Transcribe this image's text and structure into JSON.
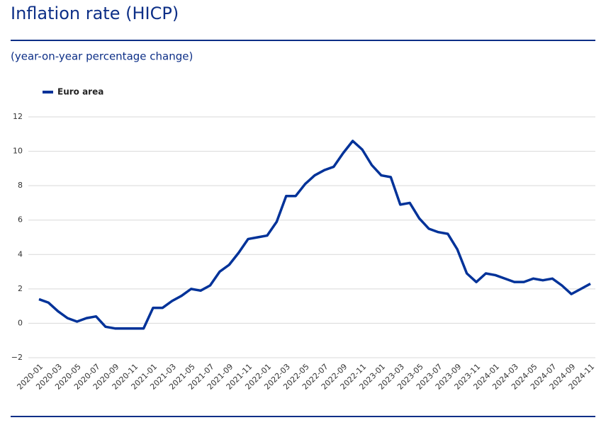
{
  "chart_data": {
    "type": "line",
    "title": "Inflation rate (HICP)",
    "subtitle": "(year-on-year percentage change)",
    "categories": [
      "2020-01",
      null,
      "2020-03",
      null,
      "2020-05",
      null,
      "2020-07",
      null,
      "2020-09",
      null,
      "2020-11",
      null,
      "2021-01",
      null,
      "2021-03",
      null,
      "2021-05",
      null,
      "2021-07",
      null,
      "2021-09",
      null,
      "2021-11",
      null,
      "2022-01",
      null,
      "2022-03",
      null,
      "2022-05",
      null,
      "2022-07",
      null,
      "2022-09",
      null,
      "2022-11",
      null,
      "2023-01",
      null,
      "2023-03",
      null,
      "2023-05",
      null,
      "2023-07",
      null,
      "2023-09",
      null,
      "2023-11",
      null,
      "2024-01",
      null,
      "2024-03",
      null,
      "2024-05",
      null,
      "2024-07",
      null,
      "2024-09",
      null,
      "2024-11"
    ],
    "series": [
      {
        "name": "Euro area",
        "color": "#003299",
        "values": [
          1.4,
          1.2,
          0.7,
          0.3,
          0.1,
          0.3,
          0.4,
          -0.2,
          -0.3,
          -0.3,
          -0.3,
          -0.3,
          0.9,
          0.9,
          1.3,
          1.6,
          2.0,
          1.9,
          2.2,
          3.0,
          3.4,
          4.1,
          4.9,
          5.0,
          5.1,
          5.9,
          7.4,
          7.4,
          8.1,
          8.6,
          8.9,
          9.1,
          9.9,
          10.6,
          10.1,
          9.2,
          8.6,
          8.5,
          6.9,
          7.0,
          6.1,
          5.5,
          5.3,
          5.2,
          4.3,
          2.9,
          2.4,
          2.9,
          2.8,
          2.6,
          2.4,
          2.4,
          2.6,
          2.5,
          2.6,
          2.2,
          1.7,
          2.0,
          2.3
        ]
      }
    ],
    "ylim": [
      -2,
      12
    ],
    "yticks": [
      {
        "value": -2,
        "label": "−2"
      },
      0,
      2,
      4,
      6,
      8,
      10,
      12
    ],
    "grid": true,
    "legend": "top-left"
  }
}
